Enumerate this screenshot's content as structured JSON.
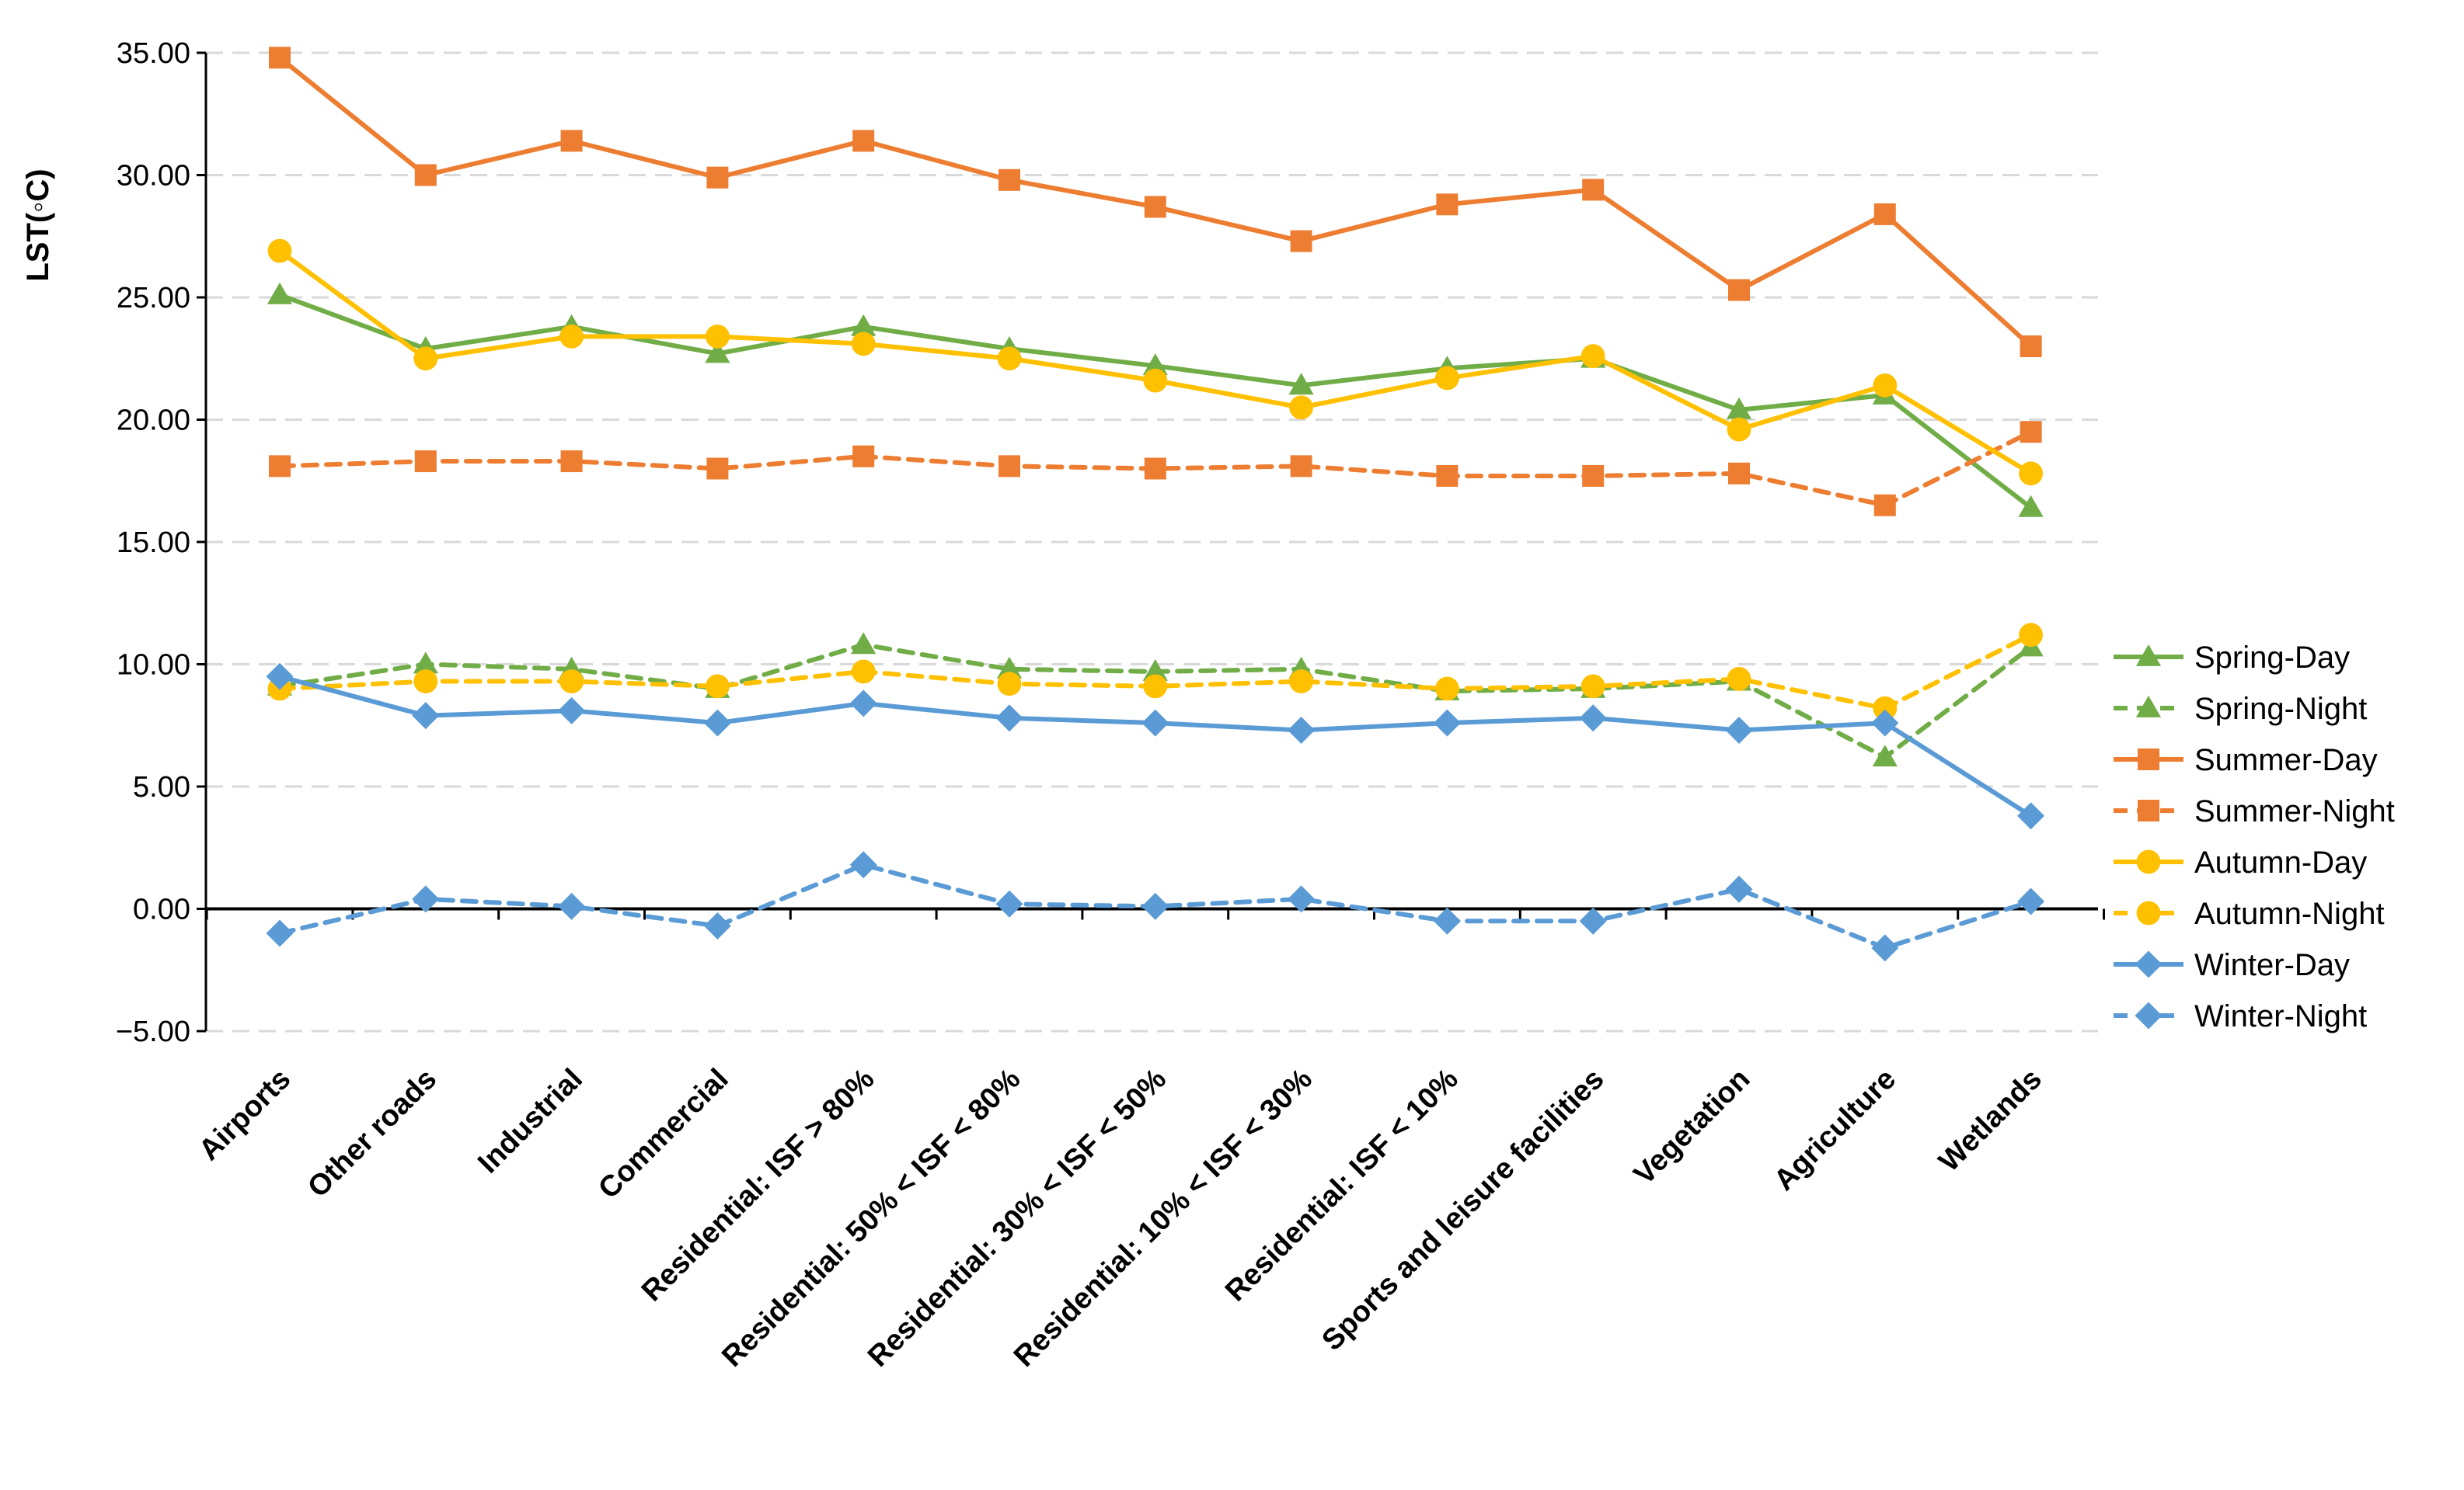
{
  "chart_data": {
    "type": "line",
    "title": "",
    "xlabel": "",
    "ylabel": "LST(◦C)",
    "ylim": [
      -5,
      35
    ],
    "yticks": [
      "35.00",
      "30.00",
      "25.00",
      "20.00",
      "15.00",
      "10.00",
      "5.00",
      "0.00",
      "−5.00"
    ],
    "grid": "horizontal dashed",
    "legend_position": "right",
    "categories": [
      "Airports",
      "Other roads",
      "Industrial",
      "Commercial",
      "Residential: ISF > 80%",
      "Residential: 50% < ISF < 80%",
      "Residential: 30% < ISF < 50%",
      "Residential: 10% < ISF < 30%",
      "Residential: ISF < 10%",
      "Sports and leisure facilities",
      "Vegetation",
      "Agriculture",
      "Wetlands"
    ],
    "series": [
      {
        "name": "Spring-Day",
        "color": "#70AD47",
        "style": "solid",
        "marker": "triangle",
        "values": [
          25.1,
          22.9,
          23.8,
          22.7,
          23.8,
          22.9,
          22.2,
          21.4,
          22.1,
          22.5,
          20.4,
          21.0,
          16.4
        ]
      },
      {
        "name": "Spring-Night",
        "color": "#70AD47",
        "style": "dashed",
        "marker": "triangle",
        "values": [
          9.1,
          10.0,
          9.8,
          9.0,
          10.8,
          9.8,
          9.7,
          9.8,
          8.9,
          9.0,
          9.3,
          6.2,
          10.7
        ]
      },
      {
        "name": "Summer-Day",
        "color": "#ED7D31",
        "style": "solid",
        "marker": "square",
        "values": [
          34.8,
          30.0,
          31.4,
          29.9,
          31.4,
          29.8,
          28.7,
          27.3,
          28.8,
          29.4,
          25.3,
          28.4,
          23.0
        ]
      },
      {
        "name": "Summer-Night",
        "color": "#ED7D31",
        "style": "dashed",
        "marker": "square",
        "values": [
          18.1,
          18.3,
          18.3,
          18.0,
          18.5,
          18.1,
          18.0,
          18.1,
          17.7,
          17.7,
          17.8,
          16.5,
          19.5
        ]
      },
      {
        "name": "Autumn-Day",
        "color": "#FFC000",
        "style": "solid",
        "marker": "circle",
        "values": [
          26.9,
          22.5,
          23.4,
          23.4,
          23.1,
          22.5,
          21.6,
          20.5,
          21.7,
          22.6,
          19.6,
          21.4,
          17.8
        ]
      },
      {
        "name": "Autumn-Night",
        "color": "#FFC000",
        "style": "dashed",
        "marker": "circle",
        "values": [
          9.0,
          9.3,
          9.3,
          9.1,
          9.7,
          9.2,
          9.1,
          9.3,
          9.0,
          9.1,
          9.4,
          8.2,
          11.2
        ]
      },
      {
        "name": "Winter-Day",
        "color": "#5B9BD5",
        "style": "solid",
        "marker": "diamond",
        "values": [
          9.5,
          7.9,
          8.1,
          7.6,
          8.4,
          7.8,
          7.6,
          7.3,
          7.6,
          7.8,
          7.3,
          7.6,
          3.8
        ]
      },
      {
        "name": "Winter-Night",
        "color": "#5B9BD5",
        "style": "dashed",
        "marker": "diamond",
        "values": [
          -1.0,
          0.4,
          0.1,
          -0.7,
          1.8,
          0.2,
          0.1,
          0.4,
          -0.5,
          -0.5,
          0.8,
          -1.6,
          0.3
        ]
      }
    ]
  }
}
